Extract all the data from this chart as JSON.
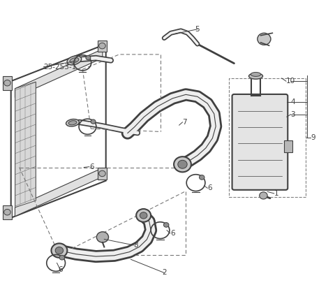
{
  "background_color": "#ffffff",
  "line_color": "#404040",
  "label_color": "#404040",
  "figsize": [
    4.8,
    4.28
  ],
  "dpi": 100
}
